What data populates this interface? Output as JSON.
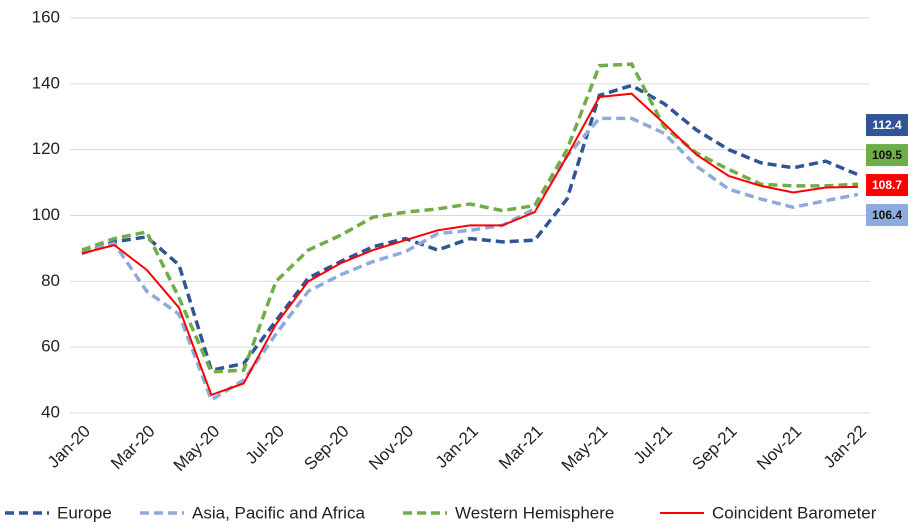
{
  "chart_data": {
    "type": "line",
    "categories": [
      "Jan-20",
      null,
      "Mar-20",
      null,
      "May-20",
      null,
      "Jul-20",
      null,
      "Sep-20",
      null,
      "Nov-20",
      null,
      "Jan-21",
      null,
      "Mar-21",
      null,
      "May-21",
      null,
      "Jul-21",
      null,
      "Sep-21",
      null,
      "Nov-21",
      null,
      "Jan-22"
    ],
    "series": [
      {
        "name": "Europe",
        "color": "#2f5597",
        "dash": true,
        "values": [
          88.5,
          92,
          93.5,
          85,
          53,
          55,
          68,
          81,
          86,
          90.5,
          93,
          89.5,
          93,
          92,
          92.5,
          105,
          136.5,
          139.5,
          134,
          126,
          120,
          116,
          114.5,
          116.5,
          112.4
        ]
      },
      {
        "name": "Asia, Pacific and Africa",
        "color": "#8faadc",
        "dash": true,
        "values": [
          89,
          91.5,
          77,
          70,
          44,
          50,
          64,
          77,
          82,
          86,
          89,
          94.5,
          95.5,
          97,
          102,
          118,
          129.5,
          129.5,
          125,
          115,
          108,
          105,
          102.5,
          104.5,
          106.4
        ]
      },
      {
        "name": "Western Hemisphere",
        "color": "#70ad47",
        "dash": true,
        "values": [
          89.5,
          93,
          95,
          75,
          52.5,
          53,
          80,
          89.5,
          94,
          99.5,
          101,
          102,
          103.5,
          101.5,
          103,
          120,
          145.5,
          146,
          127,
          119,
          114,
          109.5,
          109,
          109,
          109.5
        ]
      },
      {
        "name": "Coincident Barometer",
        "color": "#ff0000",
        "dash": false,
        "values": [
          88.5,
          91,
          83.5,
          72,
          45.5,
          49,
          67,
          80,
          85.5,
          89.5,
          92.5,
          95.5,
          97,
          97,
          101,
          118,
          136,
          137,
          128,
          118.5,
          112,
          109,
          107,
          108.5,
          108.7
        ]
      }
    ],
    "ylim": [
      40,
      160
    ],
    "yticks": [
      40,
      60,
      80,
      100,
      120,
      140,
      160
    ],
    "grid": true,
    "legend": "bottom"
  }
}
